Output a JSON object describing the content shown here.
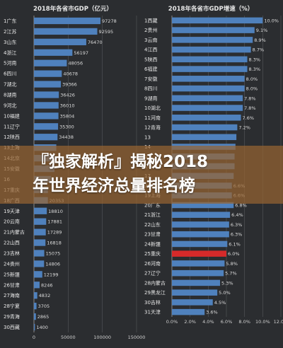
{
  "banner": {
    "line1": "『独家解析』揭秘2018",
    "line2": "年世界经济总量排名榜"
  },
  "colors": {
    "background": "#2b2d30",
    "bar": "#4f81bd",
    "highlight": "#d62a2a",
    "banner": "#96643280"
  },
  "chart_data": [
    {
      "type": "bar",
      "orientation": "horizontal",
      "title": "2018年各省市GDP（亿元）",
      "categories": [
        "1广东",
        "2江苏",
        "3山东",
        "4浙江",
        "5河南",
        "6四川",
        "7湖北",
        "8湖南",
        "9河北",
        "10福建",
        "11辽宁",
        "12陕西",
        "13上海",
        "14北京",
        "15安徽",
        "16",
        "17重庆",
        "18广西",
        "19天津",
        "20云南",
        "21内蒙古",
        "22山西",
        "23吉林",
        "24贵州",
        "25新疆",
        "26甘肃",
        "27海南",
        "28宁夏",
        "29青海",
        "30西藏"
      ],
      "values": [
        97278,
        92595,
        76470,
        56197,
        48056,
        40678,
        39366,
        36426,
        36010,
        35804,
        35300,
        34438,
        32680,
        30320,
        30006,
        25000,
        20363,
        20353,
        18810,
        17881,
        17289,
        16818,
        15075,
        14806,
        12199,
        8246,
        4832,
        3705,
        2865,
        1400
      ],
      "value_labels": [
        "97278",
        "92595",
        "76470",
        "56197",
        "48056",
        "40678",
        "39366",
        "36426",
        "36010",
        "35804",
        "35300",
        "34438",
        "",
        "",
        "",
        "",
        "",
        "20353",
        "18810",
        "17881",
        "17289",
        "16818",
        "15075",
        "14806",
        "12199",
        "8246",
        "4832",
        "3705",
        "2865",
        "1400"
      ],
      "xlim": [
        0,
        150000
      ],
      "xticks": [
        "0",
        "50000",
        "100000",
        "150000"
      ],
      "grid": true
    },
    {
      "type": "bar",
      "orientation": "horizontal",
      "title": "2018年各省市GDP增速（%）",
      "categories": [
        "1西藏",
        "2贵州",
        "3云南",
        "4江西",
        "5陕西",
        "6福建",
        "7安徽",
        "8四川",
        "9湖南",
        "10湖北",
        "11河南",
        "12青海",
        "13",
        "14",
        "15",
        "16",
        "17",
        "18北京",
        "19上海",
        "20广东",
        "21浙江",
        "22山东",
        "23甘肃",
        "24新疆",
        "25重庆",
        "26河南",
        "27辽宁",
        "28内蒙古",
        "29黑龙江",
        "30吉林",
        "31天津"
      ],
      "values": [
        10.0,
        9.1,
        8.9,
        8.7,
        8.3,
        8.3,
        8.0,
        8.0,
        7.8,
        7.8,
        7.6,
        7.2,
        7.1,
        7.0,
        6.9,
        6.9,
        6.8,
        6.6,
        6.6,
        6.8,
        6.4,
        6.3,
        6.3,
        6.1,
        6.0,
        5.8,
        5.7,
        5.3,
        5.0,
        4.5,
        3.6
      ],
      "value_labels": [
        "10.0%",
        "9.1%",
        "8.9%",
        "8.7%",
        "8.3%",
        "8.3%",
        "8.0%",
        "8.0%",
        "7.8%",
        "7.8%",
        "7.6%",
        "7.2%",
        "",
        "",
        "",
        "",
        "",
        "6.6%",
        "6.6%",
        "6.8%",
        "6.4%",
        "6.3%",
        "6.3%",
        "6.1%",
        "6.0%",
        "5.8%",
        "5.7%",
        "5.3%",
        "5.0%",
        "4.5%",
        "3.6%"
      ],
      "highlight_index": 24,
      "xlim": [
        0,
        12
      ],
      "xticks": [
        "0.0%",
        "2.0%",
        "4.0%",
        "6.0%",
        "8.0%",
        "10.0%",
        "12.0%"
      ],
      "grid": true
    }
  ]
}
